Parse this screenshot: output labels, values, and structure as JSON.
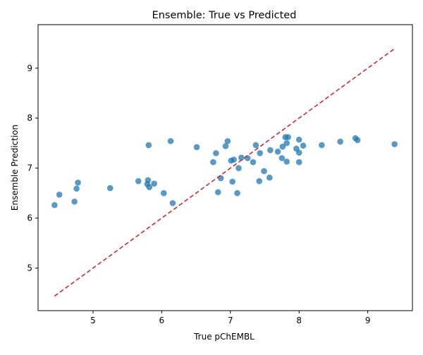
{
  "chart_data": {
    "type": "scatter",
    "title": "Ensemble: True vs Predicted",
    "xlabel": "True pChEMBL",
    "ylabel": "Ensemble Prediction",
    "xlim": [
      4.2,
      9.65
    ],
    "ylim": [
      4.15,
      9.87
    ],
    "xticks": [
      5,
      6,
      7,
      8,
      9
    ],
    "yticks": [
      5,
      6,
      7,
      8,
      9
    ],
    "grid": false,
    "point_color": "#1f77b4",
    "line_color": "#d62728",
    "reference_line": {
      "x": [
        4.44,
        9.39
      ],
      "y": [
        4.44,
        9.39
      ]
    },
    "points": [
      [
        4.44,
        6.26
      ],
      [
        4.51,
        6.47
      ],
      [
        4.73,
        6.33
      ],
      [
        4.76,
        6.59
      ],
      [
        4.78,
        6.71
      ],
      [
        5.25,
        6.6
      ],
      [
        5.66,
        6.74
      ],
      [
        5.79,
        6.68
      ],
      [
        5.8,
        6.76
      ],
      [
        5.82,
        6.62
      ],
      [
        5.81,
        7.46
      ],
      [
        5.89,
        6.69
      ],
      [
        6.03,
        6.5
      ],
      [
        6.13,
        7.54
      ],
      [
        6.16,
        6.3
      ],
      [
        6.51,
        7.42
      ],
      [
        6.75,
        7.12
      ],
      [
        6.79,
        7.3
      ],
      [
        6.82,
        6.52
      ],
      [
        6.86,
        6.8
      ],
      [
        6.93,
        7.44
      ],
      [
        6.96,
        7.54
      ],
      [
        7.01,
        7.15
      ],
      [
        7.03,
        6.73
      ],
      [
        7.05,
        7.17
      ],
      [
        7.1,
        6.5
      ],
      [
        7.12,
        7.0
      ],
      [
        7.16,
        7.21
      ],
      [
        7.25,
        7.2
      ],
      [
        7.33,
        7.12
      ],
      [
        7.37,
        7.46
      ],
      [
        7.42,
        6.74
      ],
      [
        7.43,
        7.3
      ],
      [
        7.49,
        6.94
      ],
      [
        7.57,
        6.81
      ],
      [
        7.58,
        7.36
      ],
      [
        7.69,
        7.33
      ],
      [
        7.75,
        7.2
      ],
      [
        7.76,
        7.43
      ],
      [
        7.8,
        7.62
      ],
      [
        7.82,
        7.13
      ],
      [
        7.82,
        7.5
      ],
      [
        7.84,
        7.62
      ],
      [
        7.96,
        7.39
      ],
      [
        8.0,
        7.57
      ],
      [
        8.0,
        7.31
      ],
      [
        8.0,
        7.12
      ],
      [
        8.06,
        7.45
      ],
      [
        8.33,
        7.46
      ],
      [
        8.6,
        7.53
      ],
      [
        8.82,
        7.6
      ],
      [
        8.85,
        7.56
      ],
      [
        9.39,
        7.48
      ]
    ]
  }
}
